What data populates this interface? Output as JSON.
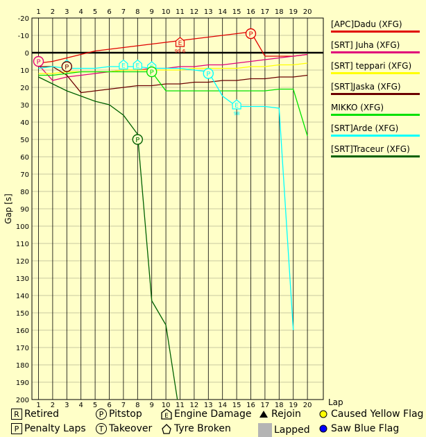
{
  "chart_data": {
    "type": "line",
    "ylabel": "Gap [s]",
    "xlabel": "Lap",
    "x": [
      1,
      2,
      3,
      4,
      5,
      6,
      7,
      8,
      9,
      10,
      11,
      12,
      13,
      14,
      15,
      16,
      17,
      18,
      19,
      20
    ],
    "ylim": [
      -20,
      200
    ],
    "yticks": [
      -20,
      -10,
      0,
      10,
      20,
      30,
      40,
      50,
      60,
      70,
      80,
      90,
      100,
      110,
      120,
      130,
      140,
      150,
      160,
      170,
      180,
      190,
      200
    ],
    "grid": true,
    "legend_position": "right",
    "series": [
      {
        "name": "[APC]Dadu (XFG)",
        "color": "#e00000",
        "values": [
          6,
          5,
          3,
          1,
          -1,
          -2,
          -3,
          -4,
          -5,
          -6,
          -7,
          -8,
          -9,
          -10,
          -11,
          -12,
          2,
          2,
          2,
          1
        ]
      },
      {
        "name": "[SRT] Juha (XFG)",
        "color": "#e0007a",
        "values": [
          7,
          16,
          14,
          13,
          12,
          11,
          10,
          10,
          9,
          9,
          8,
          8,
          7,
          7,
          6,
          5,
          4,
          3,
          2,
          1
        ]
      },
      {
        "name": "[SRT] teppari (XFG)",
        "color": "#ffff00",
        "values": [
          12,
          12,
          11,
          11,
          11,
          11,
          10,
          10,
          10,
          10,
          10,
          9,
          9,
          9,
          9,
          8,
          8,
          7,
          7,
          6
        ]
      },
      {
        "name": "[SRT]Jaska (XFG)",
        "color": "#6b0000",
        "values": [
          8,
          8,
          13,
          23,
          22,
          21,
          20,
          19,
          19,
          18,
          18,
          17,
          17,
          16,
          16,
          15,
          15,
          14,
          14,
          13
        ]
      },
      {
        "name": "MIKKO (XFG)",
        "color": "#00e000",
        "values": [
          13,
          13,
          12,
          11,
          11,
          11,
          11,
          11,
          11,
          22,
          22,
          22,
          22,
          22,
          22,
          22,
          22,
          21,
          21,
          48
        ]
      },
      {
        "name": "[SRT]Arde (XFG)",
        "color": "#00ffff",
        "values": [
          9,
          8,
          9,
          9,
          9,
          8,
          8,
          8,
          9,
          9,
          9,
          10,
          11,
          25,
          31,
          31,
          31,
          32,
          160,
          null
        ]
      },
      {
        "name": "[SRT]Traceur (XFG)",
        "color": "#006000",
        "values": [
          14,
          18,
          22,
          25,
          28,
          30,
          36,
          47,
          143,
          157,
          210,
          null,
          null,
          null,
          null,
          null,
          null,
          null,
          null,
          null
        ]
      }
    ],
    "markers": [
      {
        "series": "[APC]Dadu (XFG)",
        "lap": 11,
        "type": "engine-damage",
        "value": -6,
        "label": "99.6"
      },
      {
        "series": "[APC]Dadu (XFG)",
        "lap": 16,
        "type": "pitstop",
        "value": -11
      },
      {
        "series": "[SRT] Juha (XFG)",
        "lap": 1,
        "type": "penalty-laps",
        "value": 5
      },
      {
        "series": "[SRT]Arde (XFG)",
        "lap": 3,
        "type": "engine-damage",
        "value": 7
      },
      {
        "series": "[SRT]Arde (XFG)",
        "lap": 7,
        "type": "engine-damage",
        "value": 7
      },
      {
        "series": "[SRT]Arde (XFG)",
        "lap": 8,
        "type": "engine-damage",
        "value": 7
      },
      {
        "series": "[SRT]Arde (XFG)",
        "lap": 9,
        "type": "engine-damage",
        "value": 8
      },
      {
        "series": "[SRT]Arde (XFG)",
        "lap": 13,
        "type": "pitstop",
        "value": 12
      },
      {
        "series": "[SRT]Arde (XFG)",
        "lap": 15,
        "type": "engine-damage",
        "value": 30,
        "label": "98"
      },
      {
        "series": "MIKKO (XFG)",
        "lap": 9,
        "type": "pitstop",
        "value": 11
      },
      {
        "series": "[SRT]Jaska (XFG)",
        "lap": 3,
        "type": "pitstop",
        "value": 8
      },
      {
        "series": "[SRT]Traceur (XFG)",
        "lap": 8,
        "type": "pitstop",
        "value": 50
      }
    ]
  },
  "key": [
    {
      "symbol": "R",
      "shape": "square",
      "label": "Retired"
    },
    {
      "symbol": "P",
      "shape": "circle",
      "label": "Pitstop"
    },
    {
      "symbol": "E",
      "shape": "pentagon",
      "label": "Engine Damage"
    },
    {
      "symbol": "▲",
      "shape": "triangle",
      "label": "Rejoin"
    },
    {
      "symbol": "",
      "shape": "yellow-dot",
      "label": "Caused Yellow Flag"
    },
    {
      "symbol": "P",
      "shape": "square",
      "label": "Penalty Laps"
    },
    {
      "symbol": "T",
      "shape": "circle",
      "label": "Takeover"
    },
    {
      "symbol": "",
      "shape": "star-tyre",
      "label": "Tyre Broken"
    },
    {
      "symbol": "",
      "shape": "gray-square",
      "label": "Lapped"
    },
    {
      "symbol": "",
      "shape": "blue-dot",
      "label": "Saw Blue Flag"
    }
  ]
}
